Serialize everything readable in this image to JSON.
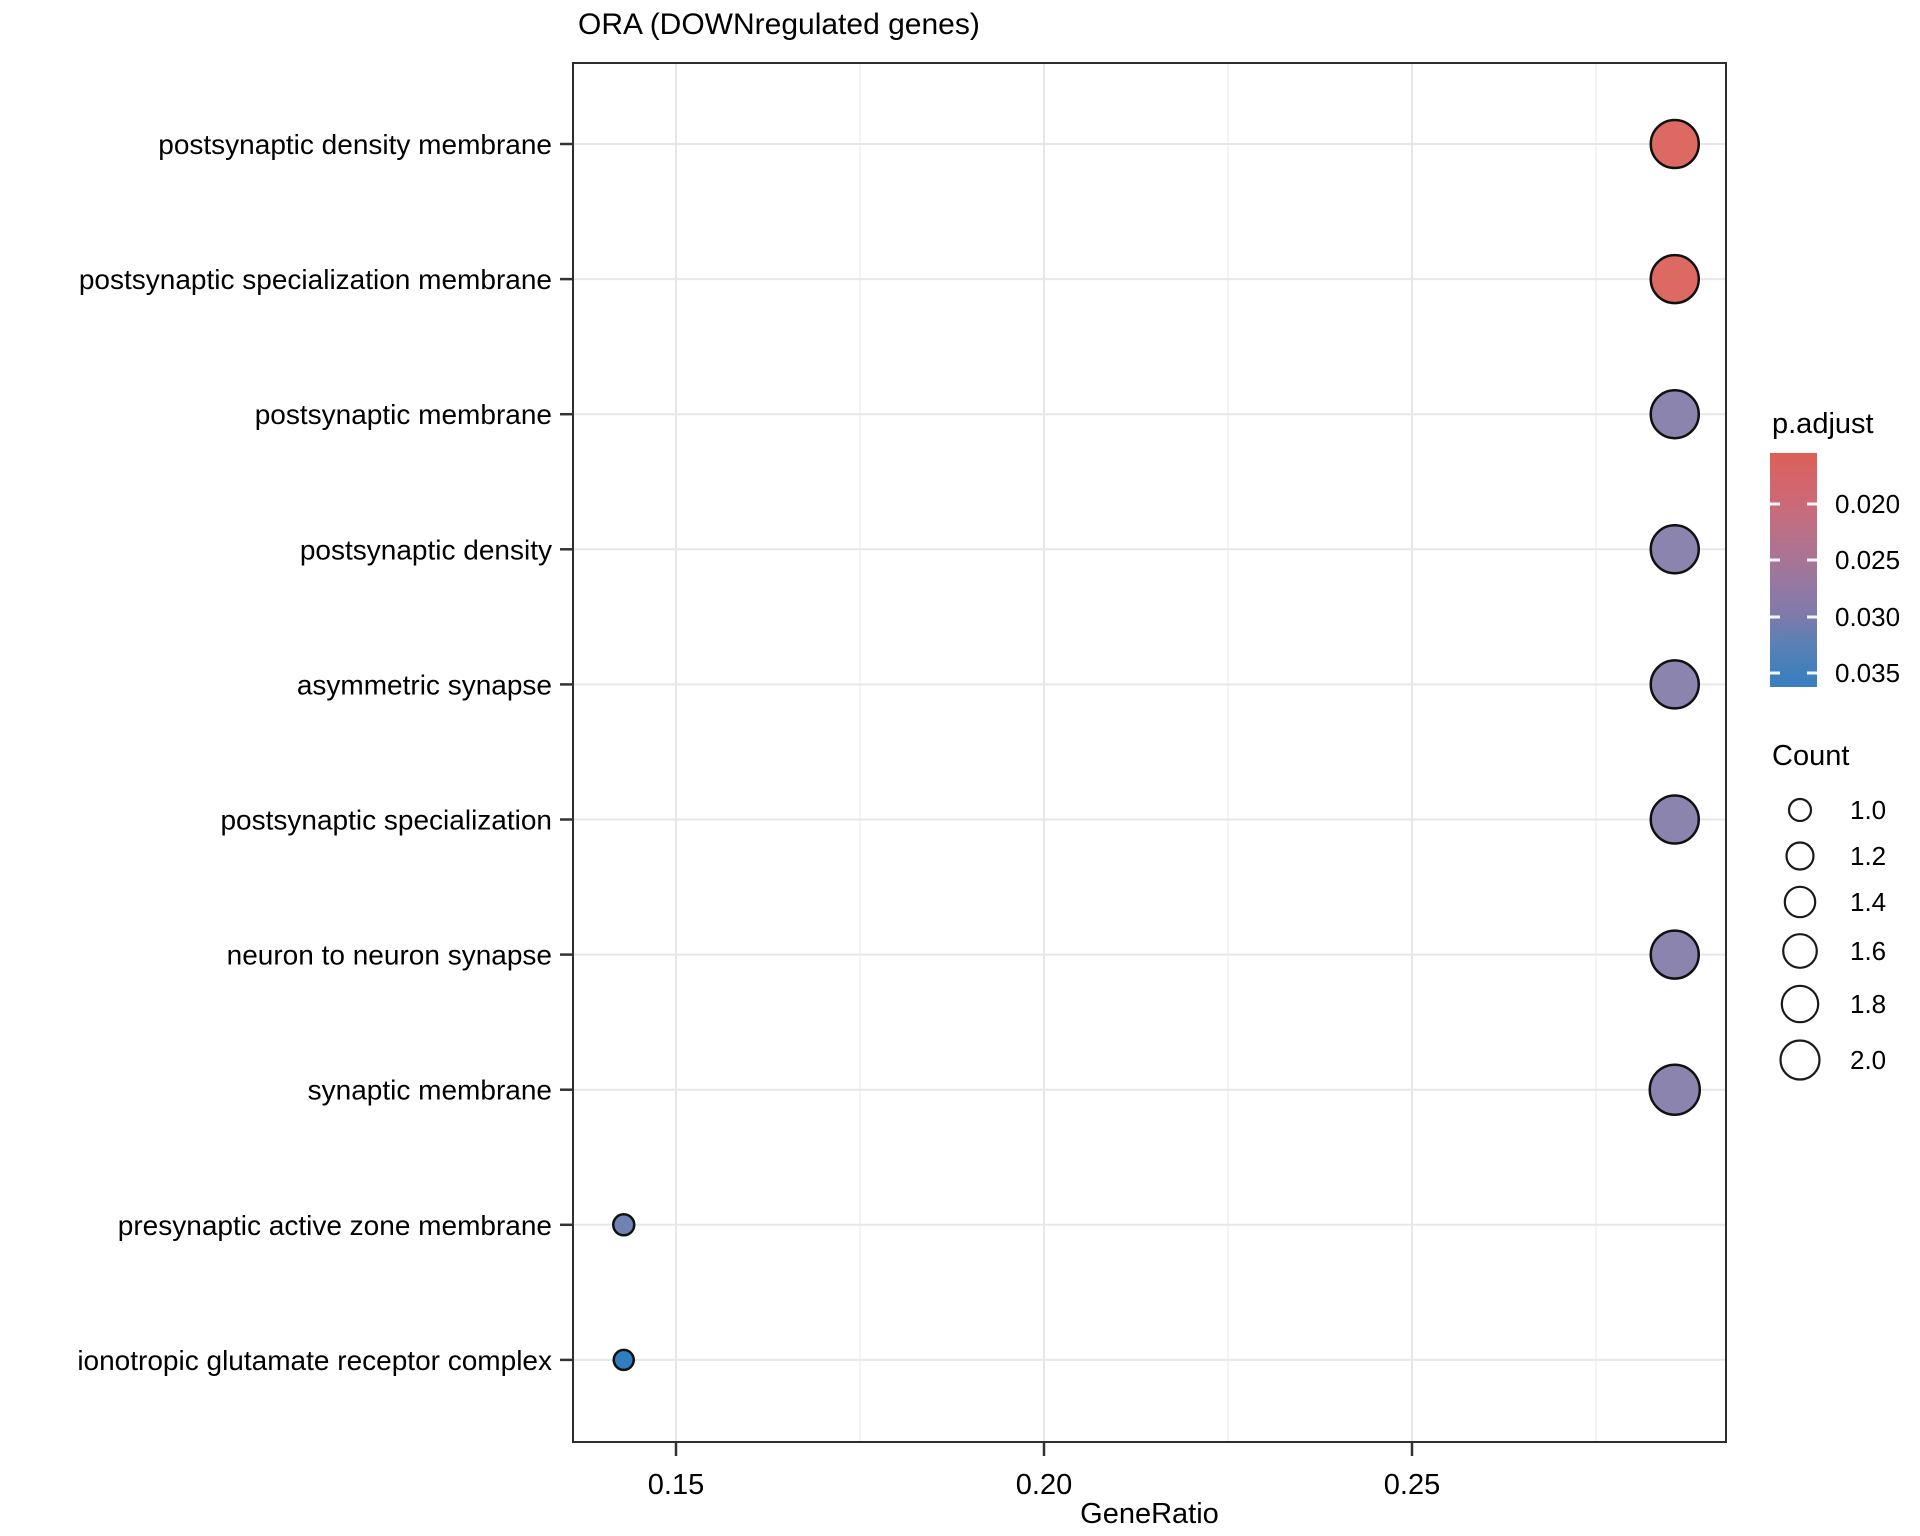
{
  "title": "ORA (DOWNregulated genes)",
  "chart_data": {
    "type": "scatter",
    "title": "ORA (DOWNregulated genes)",
    "xlabel": "GeneRatio",
    "ylabel": "",
    "grid": true,
    "legend_position": "right",
    "xlim": [
      0.136,
      0.293
    ],
    "x_ticks": [
      0.15,
      0.2,
      0.25
    ],
    "x_tick_labels": [
      "0.15",
      "0.20",
      "0.25"
    ],
    "x_minor_ticks": [
      0.175,
      0.225,
      0.275
    ],
    "categories": [
      "postsynaptic density membrane",
      "postsynaptic specialization membrane",
      "postsynaptic membrane",
      "postsynaptic density",
      "asymmetric synapse",
      "postsynaptic specialization",
      "neuron to neuron synapse",
      "synaptic membrane",
      "presynaptic active zone membrane",
      "ionotropic glutamate receptor complex"
    ],
    "points": [
      {
        "category": "postsynaptic density membrane",
        "gene_ratio": 0.2857,
        "count": 2,
        "p_adjust_est": 0.016,
        "color": "#dd6a62",
        "r": 24
      },
      {
        "category": "postsynaptic specialization membrane",
        "gene_ratio": 0.2857,
        "count": 2,
        "p_adjust_est": 0.016,
        "color": "#dd6a62",
        "r": 24
      },
      {
        "category": "postsynaptic membrane",
        "gene_ratio": 0.2857,
        "count": 2,
        "p_adjust_est": 0.03,
        "color": "#8a84ae",
        "r": 24
      },
      {
        "category": "postsynaptic density",
        "gene_ratio": 0.2857,
        "count": 2,
        "p_adjust_est": 0.03,
        "color": "#8a84ae",
        "r": 24
      },
      {
        "category": "asymmetric synapse",
        "gene_ratio": 0.2857,
        "count": 2,
        "p_adjust_est": 0.03,
        "color": "#8a84ae",
        "r": 24
      },
      {
        "category": "postsynaptic specialization",
        "gene_ratio": 0.2857,
        "count": 2,
        "p_adjust_est": 0.03,
        "color": "#8a84ae",
        "r": 24
      },
      {
        "category": "neuron to neuron synapse",
        "gene_ratio": 0.2857,
        "count": 2,
        "p_adjust_est": 0.03,
        "color": "#8a84ae",
        "r": 24
      },
      {
        "category": "synaptic membrane",
        "gene_ratio": 0.2857,
        "count": 2,
        "p_adjust_est": 0.03,
        "color": "#8a84ae",
        "r": 25
      },
      {
        "category": "presynaptic active zone membrane",
        "gene_ratio": 0.1429,
        "count": 1,
        "p_adjust_est": 0.032,
        "color": "#7081b4",
        "r": 10.5
      },
      {
        "category": "ionotropic glutamate receptor complex",
        "gene_ratio": 0.1429,
        "count": 1,
        "p_adjust_est": 0.036,
        "color": "#2f7ebd",
        "r": 10
      }
    ],
    "legend": {
      "p_adjust": {
        "title": "p.adjust",
        "tick_labels": [
          "0.020",
          "0.025",
          "0.030",
          "0.035"
        ],
        "tick_values": [
          0.02,
          0.025,
          0.03,
          0.035
        ],
        "range_est": [
          0.0155,
          0.0362
        ],
        "gradient": [
          {
            "offset": 0.0,
            "color": "#dc6057"
          },
          {
            "offset": 0.11,
            "color": "#d4656a"
          },
          {
            "offset": 0.217,
            "color": "#cb6a77"
          },
          {
            "offset": 0.33,
            "color": "#bb7086"
          },
          {
            "offset": 0.455,
            "color": "#a87495"
          },
          {
            "offset": 0.56,
            "color": "#9578a2"
          },
          {
            "offset": 0.698,
            "color": "#7e7aac"
          },
          {
            "offset": 0.8,
            "color": "#5f80b4"
          },
          {
            "offset": 0.936,
            "color": "#417fbd"
          },
          {
            "offset": 1.0,
            "color": "#3b7ec1"
          }
        ]
      },
      "count": {
        "title": "Count",
        "items": [
          {
            "label": "1.0",
            "r": 11.0
          },
          {
            "label": "1.2",
            "r": 13.5
          },
          {
            "label": "1.4",
            "r": 15.2
          },
          {
            "label": "1.6",
            "r": 16.8
          },
          {
            "label": "1.8",
            "r": 18.2
          },
          {
            "label": "2.0",
            "r": 19.5
          }
        ]
      }
    }
  },
  "colors": {
    "grid_major": "#e7e7e7",
    "grid_minor": "#f1f1f1",
    "panel_border": "#2e2e2e",
    "tick": "#333333",
    "dot_stroke": "#111111",
    "red_high": "#dd6a62",
    "purple_mid": "#8a84ae",
    "blue_low": "#2f7ebd"
  }
}
